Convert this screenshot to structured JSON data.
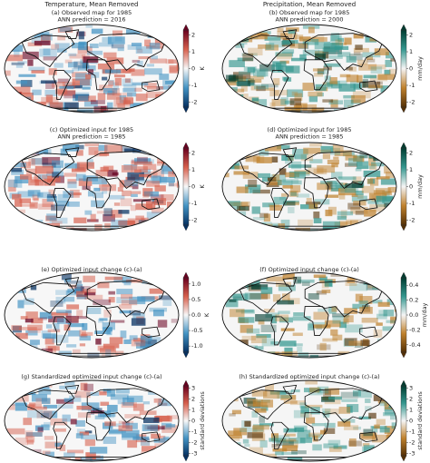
{
  "headers": [
    "Temperature, Mean Removed",
    "Precipitation, Mean Removed"
  ],
  "panels": [
    {
      "title": [
        "(a) Observed map for 1985",
        "ANN prediction = 2016"
      ],
      "colorbar": {
        "label": "K",
        "lim": [
          -2.3,
          2.3
        ],
        "ticks": [
          -2,
          -1,
          0,
          1,
          2
        ]
      }
    },
    {
      "title": [
        "(b) Observed map for 1985",
        "ANN prediction = 2000"
      ],
      "colorbar": {
        "label": "mm/day",
        "lim": [
          -2.3,
          2.3
        ],
        "ticks": [
          -2,
          -1,
          0,
          1,
          2
        ]
      }
    },
    {
      "title": [
        "(c) Optimized input for 1985",
        "ANN prediction = 1985"
      ],
      "colorbar": {
        "label": "K",
        "lim": [
          -2.3,
          2.3
        ],
        "ticks": [
          -2,
          -1,
          0,
          1,
          2
        ]
      }
    },
    {
      "title": [
        "(d) Optimized input for 1985",
        "ANN prediction = 1985"
      ],
      "colorbar": {
        "label": "mm/day",
        "lim": [
          -2.3,
          2.3
        ],
        "ticks": [
          -2,
          -1,
          0,
          1,
          2
        ]
      }
    },
    {
      "title": [
        "(e) Optimized input change (c)-(a)"
      ],
      "colorbar": {
        "label": "K",
        "lim": [
          -1.2,
          1.2
        ],
        "ticks": [
          {
            "value": -1,
            "label": "-1.0"
          },
          -0.5,
          {
            "value": 0,
            "label": "0.0"
          },
          0.5,
          {
            "value": 1,
            "label": "1.0"
          }
        ]
      }
    },
    {
      "title": [
        "(f) Optimized input change (c)-(a)"
      ],
      "colorbar": {
        "label": "mm/day",
        "lim": [
          -0.5,
          0.5
        ],
        "ticks": [
          -0.4,
          -0.2,
          {
            "value": 0,
            "label": "0.0"
          },
          0.2,
          0.4
        ]
      }
    },
    {
      "title": [
        "(g) Standardized optimized input change (c)-(a)"
      ],
      "colorbar": {
        "label": "standard deviations",
        "lim": [
          -3.2,
          3.2
        ],
        "ticks": [
          -3,
          -2,
          -1,
          0,
          1,
          2,
          3
        ]
      }
    },
    {
      "title": [
        "(h) Standardized optimized input change (c)-(a)"
      ],
      "colorbar": {
        "label": "standard deviations",
        "lim": [
          -3.2,
          3.2
        ],
        "ticks": [
          -3,
          -2,
          -1,
          0,
          1,
          2,
          3
        ]
      }
    }
  ]
}
